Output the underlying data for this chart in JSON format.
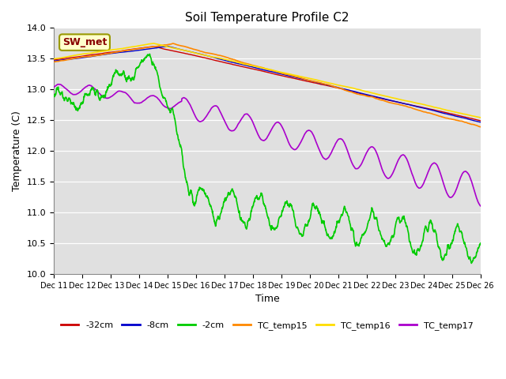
{
  "title": "Soil Temperature Profile C2",
  "xlabel": "Time",
  "ylabel": "Temperature (C)",
  "ylim": [
    10.0,
    14.0
  ],
  "yticks": [
    10.0,
    10.5,
    11.0,
    11.5,
    12.0,
    12.5,
    13.0,
    13.5,
    14.0
  ],
  "bg_color": "#e0e0e0",
  "annotation_text": "SW_met",
  "annotation_bg": "#ffffcc",
  "annotation_border": "#999900",
  "annotation_text_color": "#880000",
  "series": {
    "neg32cm": {
      "color": "#cc0000",
      "label": "-32cm"
    },
    "neg8cm": {
      "color": "#0000cc",
      "label": "-8cm"
    },
    "neg2cm": {
      "color": "#00cc00",
      "label": "-2cm"
    },
    "TC_temp15": {
      "color": "#ff8800",
      "label": "TC_temp15"
    },
    "TC_temp16": {
      "color": "#ffdd00",
      "label": "TC_temp16"
    },
    "TC_temp17": {
      "color": "#aa00cc",
      "label": "TC_temp17"
    }
  },
  "xtick_labels": [
    "Dec 11",
    "Dec 12",
    "Dec 13",
    "Dec 14",
    "Dec 15",
    "Dec 16",
    "Dec 17",
    "Dec 18",
    "Dec 19",
    "Dec 20",
    "Dec 21",
    "Dec 22",
    "Dec 23",
    "Dec 24",
    "Dec 25",
    "Dec 26"
  ]
}
